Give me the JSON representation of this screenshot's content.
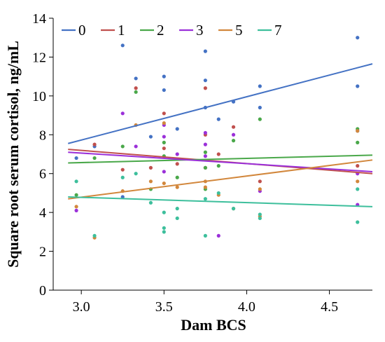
{
  "chart_data": {
    "type": "scatter",
    "title": "",
    "xlabel": "Dam BCS",
    "ylabel": "Square root serum cortisol, ng/mL",
    "xlim": [
      2.83,
      4.76
    ],
    "ylim": [
      0,
      14
    ],
    "x_ticks": [
      3.0,
      3.5,
      4.0,
      4.5
    ],
    "x_tick_labels": [
      "3.0",
      "3.5",
      "4.0",
      "4.5"
    ],
    "y_ticks": [
      0,
      2,
      4,
      6,
      8,
      10,
      12,
      14
    ],
    "y_tick_labels": [
      "0",
      "2",
      "4",
      "6",
      "8",
      "10",
      "12",
      "14"
    ],
    "grid": false,
    "legend_position": "top-left",
    "series": [
      {
        "name": "0",
        "color": "#4472c4",
        "points": [
          [
            2.97,
            6.8
          ],
          [
            3.08,
            7.4
          ],
          [
            3.25,
            12.6
          ],
          [
            3.25,
            4.8
          ],
          [
            3.33,
            10.9
          ],
          [
            3.42,
            7.9
          ],
          [
            3.5,
            11.0
          ],
          [
            3.5,
            10.3
          ],
          [
            3.58,
            8.3
          ],
          [
            3.75,
            12.3
          ],
          [
            3.75,
            10.8
          ],
          [
            3.75,
            9.4
          ],
          [
            3.83,
            8.8
          ],
          [
            3.92,
            9.7
          ],
          [
            4.08,
            10.5
          ],
          [
            4.08,
            9.4
          ],
          [
            4.67,
            13.0
          ],
          [
            4.67,
            10.5
          ],
          [
            4.67,
            8.2
          ]
        ],
        "fit": [
          [
            2.92,
            7.55
          ],
          [
            4.76,
            11.65
          ]
        ]
      },
      {
        "name": "1",
        "color": "#c0504d",
        "points": [
          [
            3.08,
            7.5
          ],
          [
            3.25,
            6.2
          ],
          [
            3.33,
            10.4
          ],
          [
            3.42,
            6.3
          ],
          [
            3.5,
            9.1
          ],
          [
            3.5,
            7.3
          ],
          [
            3.58,
            6.5
          ],
          [
            3.75,
            10.4
          ],
          [
            3.75,
            8.0
          ],
          [
            3.75,
            6.3
          ],
          [
            3.83,
            7.0
          ],
          [
            3.92,
            8.4
          ],
          [
            4.08,
            5.6
          ],
          [
            4.67,
            6.4
          ]
        ],
        "fit": [
          [
            2.92,
            7.25
          ],
          [
            4.76,
            6.0
          ]
        ]
      },
      {
        "name": "2",
        "color": "#4aa84a",
        "points": [
          [
            2.97,
            4.9
          ],
          [
            3.08,
            6.8
          ],
          [
            3.25,
            7.4
          ],
          [
            3.33,
            10.2
          ],
          [
            3.42,
            5.2
          ],
          [
            3.5,
            7.6
          ],
          [
            3.5,
            6.9
          ],
          [
            3.58,
            5.8
          ],
          [
            3.75,
            7.1
          ],
          [
            3.75,
            6.3
          ],
          [
            3.75,
            5.2
          ],
          [
            3.83,
            6.4
          ],
          [
            3.92,
            7.7
          ],
          [
            4.08,
            8.8
          ],
          [
            4.67,
            7.6
          ],
          [
            4.67,
            8.3
          ]
        ],
        "fit": [
          [
            2.92,
            6.55
          ],
          [
            4.76,
            6.95
          ]
        ]
      },
      {
        "name": "3",
        "color": "#9b30d9",
        "points": [
          [
            2.97,
            4.1
          ],
          [
            3.25,
            9.1
          ],
          [
            3.33,
            7.4
          ],
          [
            3.5,
            8.5
          ],
          [
            3.5,
            7.9
          ],
          [
            3.5,
            6.1
          ],
          [
            3.58,
            7.0
          ],
          [
            3.75,
            8.1
          ],
          [
            3.75,
            7.5
          ],
          [
            3.75,
            6.9
          ],
          [
            3.83,
            2.8
          ],
          [
            3.92,
            8.0
          ],
          [
            4.08,
            5.1
          ],
          [
            4.67,
            4.4
          ],
          [
            4.67,
            6.0
          ]
        ],
        "fit": [
          [
            2.92,
            7.1
          ],
          [
            4.76,
            6.1
          ]
        ]
      },
      {
        "name": "5",
        "color": "#d2873c",
        "points": [
          [
            2.97,
            4.3
          ],
          [
            3.08,
            2.7
          ],
          [
            3.25,
            5.1
          ],
          [
            3.33,
            8.5
          ],
          [
            3.42,
            5.6
          ],
          [
            3.5,
            5.5
          ],
          [
            3.5,
            8.6
          ],
          [
            3.58,
            5.3
          ],
          [
            3.75,
            5.6
          ],
          [
            3.75,
            5.3
          ],
          [
            3.83,
            4.9
          ],
          [
            3.92,
            4.2
          ],
          [
            4.08,
            3.8
          ],
          [
            4.08,
            5.2
          ],
          [
            4.67,
            5.6
          ],
          [
            4.67,
            8.2
          ]
        ],
        "fit": [
          [
            2.92,
            4.7
          ],
          [
            4.76,
            6.7
          ]
        ]
      },
      {
        "name": "7",
        "color": "#3dbf9c",
        "points": [
          [
            2.97,
            5.6
          ],
          [
            3.08,
            2.8
          ],
          [
            3.25,
            5.8
          ],
          [
            3.33,
            6.0
          ],
          [
            3.42,
            4.5
          ],
          [
            3.5,
            4.0
          ],
          [
            3.5,
            3.2
          ],
          [
            3.5,
            3.0
          ],
          [
            3.58,
            4.2
          ],
          [
            3.58,
            3.7
          ],
          [
            3.75,
            4.7
          ],
          [
            3.75,
            2.8
          ],
          [
            3.83,
            5.0
          ],
          [
            3.92,
            4.2
          ],
          [
            4.08,
            3.9
          ],
          [
            4.08,
            3.7
          ],
          [
            4.67,
            3.5
          ],
          [
            4.67,
            5.2
          ]
        ],
        "fit": [
          [
            2.92,
            4.8
          ],
          [
            4.76,
            4.3
          ]
        ]
      }
    ]
  }
}
